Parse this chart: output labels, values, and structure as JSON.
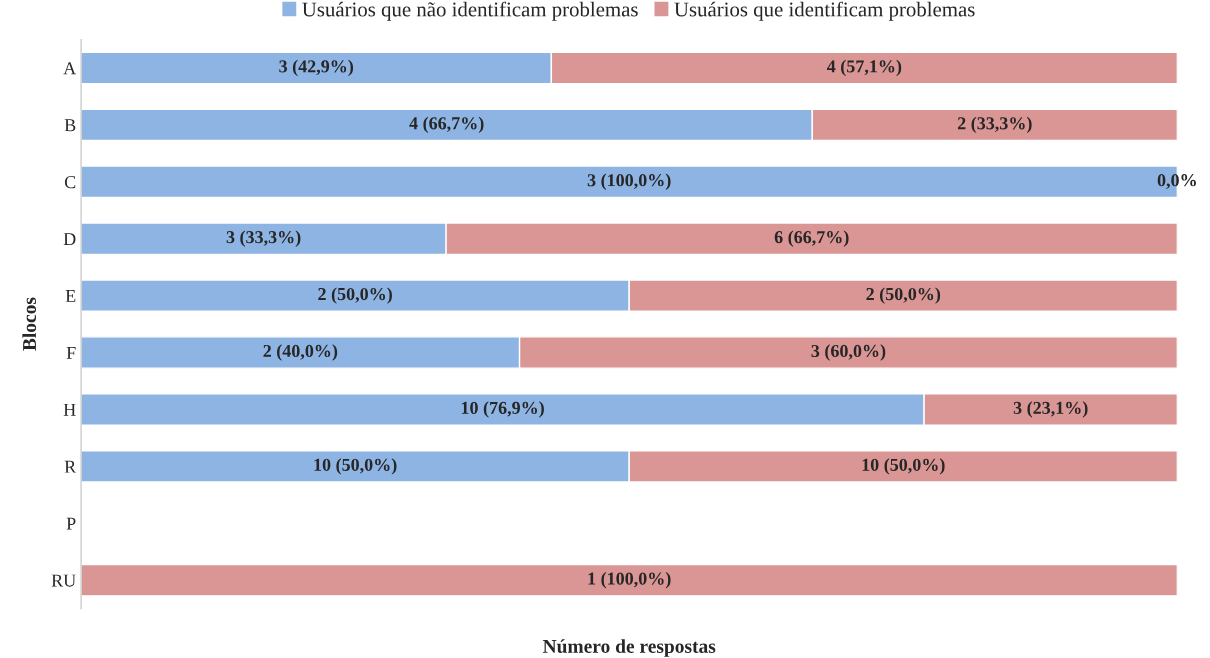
{
  "chart_data": {
    "type": "bar",
    "orientation": "horizontal",
    "stacked": true,
    "xlabel": "Número de respostas",
    "ylabel": "Blocos",
    "categories": [
      "A",
      "B",
      "C",
      "D",
      "E",
      "F",
      "H",
      "R",
      "P",
      "RU"
    ],
    "series": [
      {
        "name": "Usuários que não identificam problemas",
        "color": "#8eb4e3",
        "values": [
          42.9,
          66.7,
          100.0,
          33.3,
          50.0,
          40.0,
          76.9,
          50.0,
          null,
          0
        ],
        "value_labels": [
          "3 (42,9%)",
          "4 (66,7%)",
          "3 (100,0%)",
          "3 (33,3%)",
          "2 (50,0%)",
          "2 (40,0%)",
          "10 (76,9%)",
          "10 (50,0%)",
          null,
          null
        ]
      },
      {
        "name": "Usuários que identificam problemas",
        "color": "#d99694",
        "values": [
          57.1,
          33.3,
          0,
          66.7,
          50.0,
          60.0,
          23.1,
          50.0,
          null,
          100.0
        ],
        "value_labels": [
          "4 (57,1%)",
          "2 (33,3%)",
          "0,0%",
          "6 (66,7%)",
          "2 (50,0%)",
          "3 (60,0%)",
          "3 (23,1%)",
          "10 (50,0%)",
          null,
          "1 (100,0%)"
        ]
      }
    ],
    "legend": "top",
    "grid": false,
    "tick_labels": "y"
  }
}
